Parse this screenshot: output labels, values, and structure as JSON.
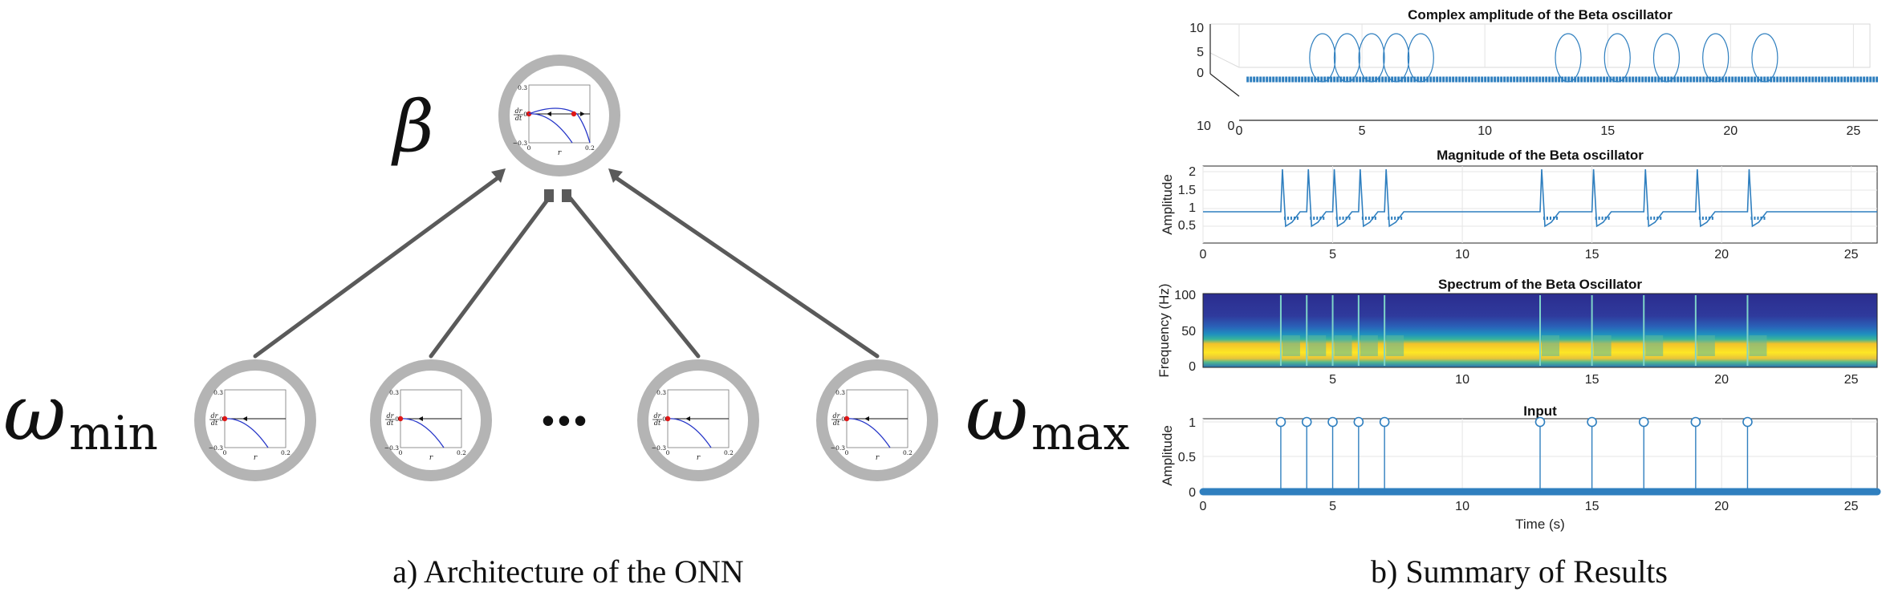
{
  "architecture": {
    "top_node_label": "β",
    "left_label_base": "ω",
    "left_label_sub": "min",
    "right_label_base": "ω",
    "right_label_sub": "max",
    "ellipsis": "•••",
    "caption": "a) Architecture of the ONN",
    "mini_plot": {
      "ylabel_num": "dr",
      "ylabel_den": "dt",
      "xlabel": "r",
      "y_top": "0.3",
      "y_zero": "0",
      "y_bottom": "−0.3",
      "x_left": "0",
      "x_right": "0.2"
    }
  },
  "results": {
    "caption": "b) Summary of Results",
    "colors": {
      "series": "#2f7fbf",
      "grid": "#e6e6e6",
      "axis": "#262626"
    },
    "panel_complex": {
      "title": "Complex amplitude of the Beta oscillator",
      "yticks": [
        "10",
        "5",
        "0"
      ],
      "xticks": [
        "0",
        "5",
        "10",
        "15",
        "20",
        "25"
      ],
      "depth_ticks": [
        "10",
        "0"
      ]
    },
    "panel_magnitude": {
      "title": "Magnitude of the Beta oscillator",
      "ylabel": "Amplitude",
      "yticks": [
        "2",
        "1.5",
        "1",
        "0.5"
      ],
      "xticks": [
        "0",
        "5",
        "10",
        "15",
        "20",
        "25"
      ]
    },
    "panel_spectrum": {
      "title": "Spectrum of the Beta Oscillator",
      "ylabel": "Frequency (Hz)",
      "yticks": [
        "100",
        "50",
        "0"
      ],
      "xticks": [
        "5",
        "10",
        "15",
        "20",
        "25"
      ]
    },
    "panel_input": {
      "title": "Input",
      "ylabel": "Amplitude",
      "xlabel": "Time (s)",
      "yticks": [
        "1",
        "0.5",
        "0"
      ],
      "xticks": [
        "0",
        "5",
        "10",
        "15",
        "20",
        "25"
      ],
      "pulse_times": [
        3,
        4,
        5,
        6,
        7,
        13,
        15,
        17,
        19,
        21
      ]
    }
  }
}
